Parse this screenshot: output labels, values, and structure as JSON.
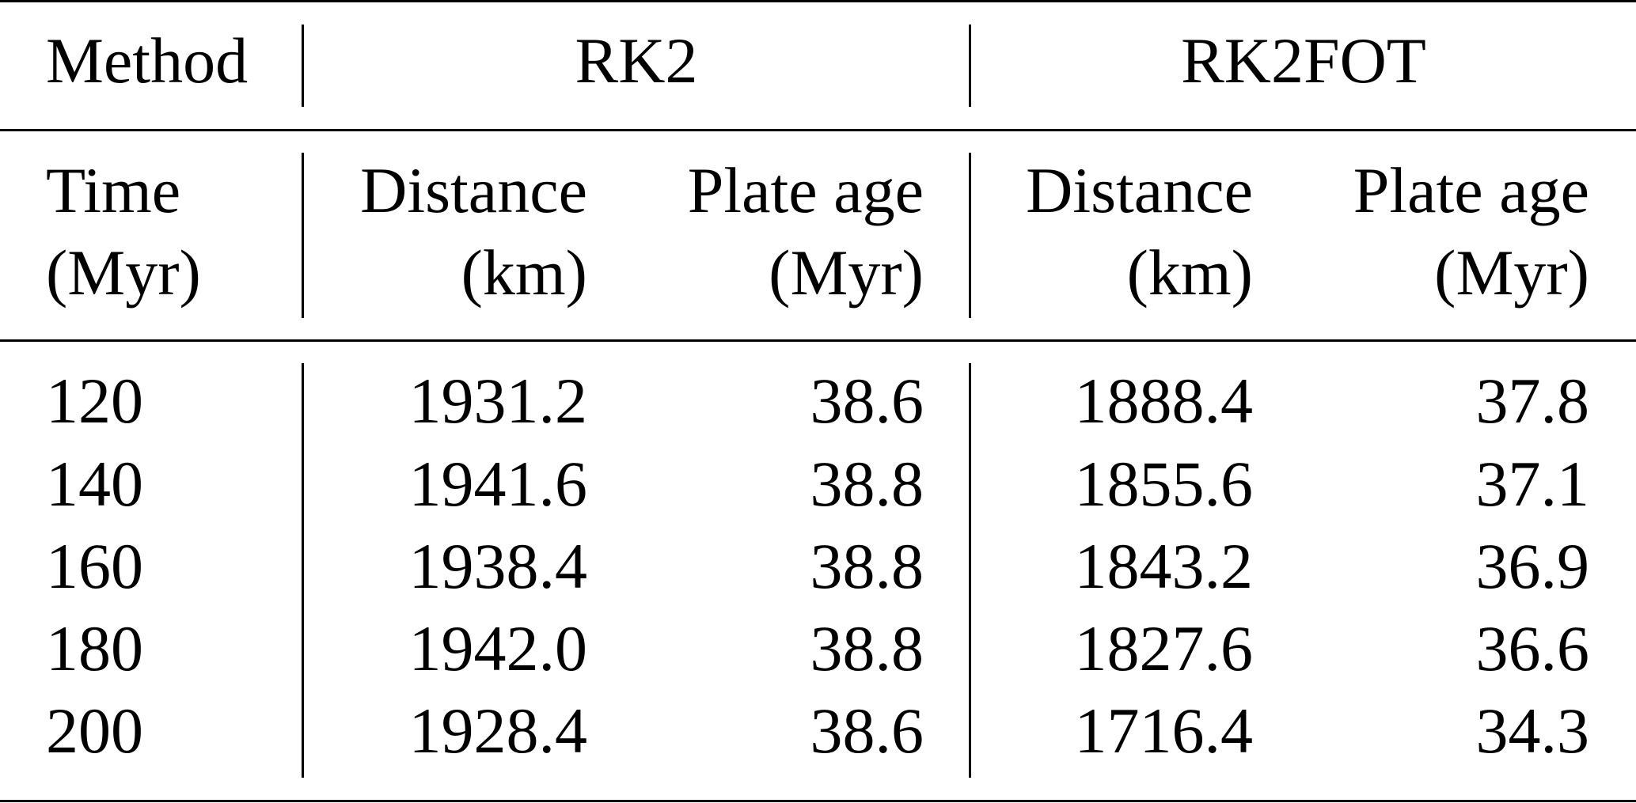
{
  "table": {
    "header_top": {
      "method_label": "Method",
      "group1": "RK2",
      "group2": "RK2FOT"
    },
    "header_sub": {
      "time_line1": "Time",
      "time_line2": "(Myr)",
      "distance_line1": "Distance",
      "distance_line2": "(km)",
      "plate_age_line1": "Plate age",
      "plate_age_line2": "(Myr)"
    },
    "rows": [
      {
        "time": "120",
        "rk2_distance": "1931.2",
        "rk2_age": "38.6",
        "fot_distance": "1888.4",
        "fot_age": "37.8"
      },
      {
        "time": "140",
        "rk2_distance": "1941.6",
        "rk2_age": "38.8",
        "fot_distance": "1855.6",
        "fot_age": "37.1"
      },
      {
        "time": "160",
        "rk2_distance": "1938.4",
        "rk2_age": "38.8",
        "fot_distance": "1843.2",
        "fot_age": "36.9"
      },
      {
        "time": "180",
        "rk2_distance": "1942.0",
        "rk2_age": "38.8",
        "fot_distance": "1827.6",
        "fot_age": "36.6"
      },
      {
        "time": "200",
        "rk2_distance": "1928.4",
        "rk2_age": "38.6",
        "fot_distance": "1716.4",
        "fot_age": "34.3"
      }
    ]
  }
}
